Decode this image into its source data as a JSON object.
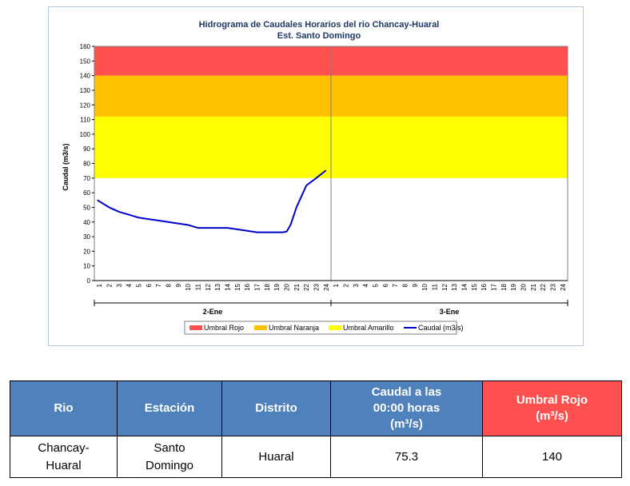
{
  "chart_data": {
    "type": "line",
    "title": "Hidrograma de Caudales Horarios del rio Chancay-Huaral",
    "subtitle": "Est. Santo Domingo",
    "ylabel": "Caudal  (m3/s)",
    "ylim": [
      0,
      160
    ],
    "yticks": [
      0,
      10,
      20,
      30,
      40,
      50,
      60,
      70,
      80,
      90,
      100,
      110,
      120,
      130,
      140,
      150,
      160
    ],
    "hour_ticks": [
      "1",
      "2",
      "3",
      "4",
      "5",
      "6",
      "7",
      "8",
      "9",
      "10",
      "11",
      "12",
      "13",
      "14",
      "15",
      "16",
      "17",
      "18",
      "19",
      "20",
      "21",
      "22",
      "23",
      "24"
    ],
    "days": [
      "2-Ene",
      "3-Ene"
    ],
    "bands": [
      {
        "name": "Umbral Rojo",
        "from": 140,
        "to": 160,
        "color": "#ff5050"
      },
      {
        "name": "Umbral Naranja",
        "from": 112,
        "to": 140,
        "color": "#ffc000"
      },
      {
        "name": "Umbral Amarillo",
        "from": 70,
        "to": 112,
        "color": "#ffff00"
      }
    ],
    "series": [
      {
        "name": "Caudal (m3/s)",
        "color": "#0000cc",
        "day": "2-Ene",
        "x": [
          0.8,
          2,
          3,
          4,
          5,
          6,
          7,
          8,
          9,
          10,
          11,
          12,
          13,
          14,
          15,
          16,
          17,
          18,
          19,
          19.6,
          20,
          20.4,
          21,
          22,
          23,
          24
        ],
        "y": [
          55,
          50,
          47,
          45,
          43,
          42,
          41,
          40,
          39,
          38,
          36,
          36,
          36,
          36,
          35,
          34,
          33,
          33,
          33,
          33,
          33.5,
          38,
          50,
          65,
          70,
          75.3
        ]
      }
    ],
    "legend": [
      "Umbral Rojo",
      "Umbral Naranja",
      "Umbral Amarillo",
      "Caudal (m3/s)"
    ],
    "legend_position": "bottom"
  },
  "table": {
    "headers": [
      "Rio",
      "Estación",
      "Distrito",
      "Caudal a las\n00:00 horas\n(m³/s)",
      "Umbral Rojo\n(m³/s)"
    ],
    "row": [
      "Chancay-\nHuaral",
      "Santo\nDomingo",
      "Huaral",
      "75.3",
      "140"
    ]
  }
}
